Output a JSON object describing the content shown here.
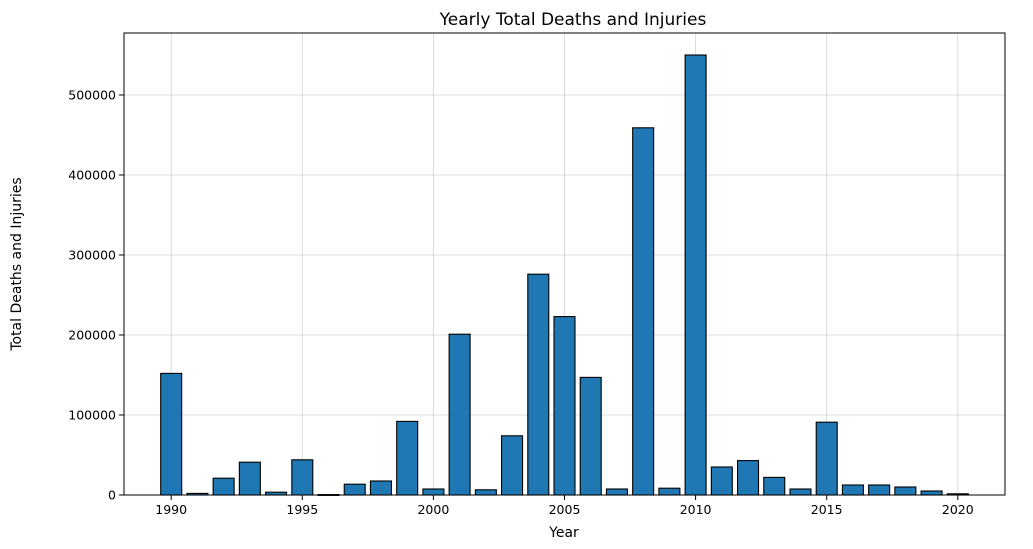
{
  "chart_data": {
    "type": "bar",
    "title": "Yearly Total Deaths and Injuries",
    "xlabel": "Year",
    "ylabel": "Total Deaths and Injuries",
    "x": [
      1990,
      1991,
      1992,
      1993,
      1994,
      1995,
      1996,
      1997,
      1998,
      1999,
      2000,
      2001,
      2002,
      2003,
      2004,
      2005,
      2006,
      2007,
      2008,
      2009,
      2010,
      2011,
      2012,
      2013,
      2014,
      2015,
      2016,
      2017,
      2018,
      2019,
      2020
    ],
    "values": [
      152000,
      2000,
      21000,
      41000,
      3500,
      44000,
      500,
      13500,
      17500,
      92000,
      7500,
      201000,
      6500,
      74000,
      276000,
      223000,
      147000,
      7500,
      459000,
      8500,
      550000,
      35000,
      43000,
      22000,
      7500,
      91000,
      12500,
      12500,
      10000,
      5000,
      1500
    ],
    "xlim": [
      1988.2,
      2021.8
    ],
    "ylim": [
      0,
      577500
    ],
    "x_ticks": [
      1990,
      1995,
      2000,
      2005,
      2010,
      2015,
      2020
    ],
    "y_ticks": [
      0,
      100000,
      200000,
      300000,
      400000,
      500000
    ],
    "grid": true,
    "bar_color": "#1f77b4",
    "edge_color": "#000000"
  }
}
